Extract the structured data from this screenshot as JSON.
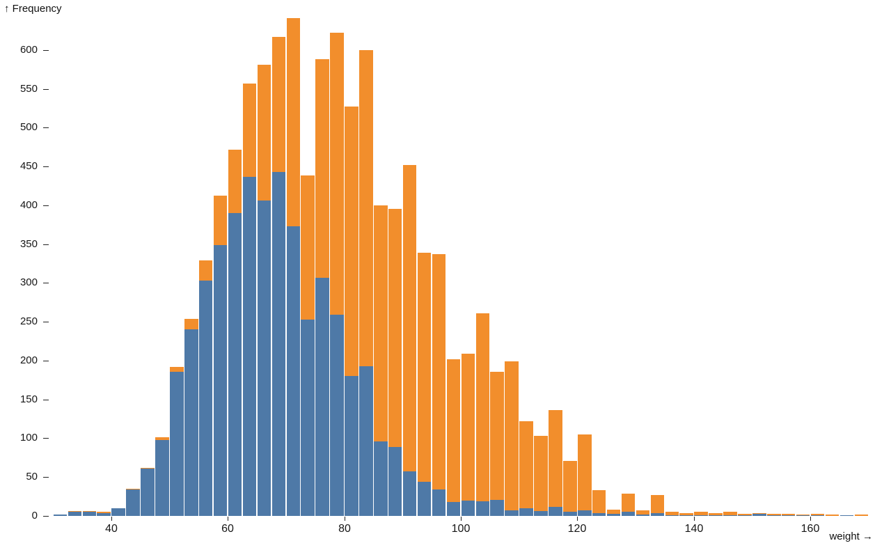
{
  "chart": {
    "y_axis_label": "↑ Frequency",
    "x_axis_label": "weight →"
  },
  "chart_data": {
    "type": "bar",
    "subtype": "stacked-histogram",
    "title": "",
    "xlabel": "weight",
    "ylabel": "Frequency",
    "bin_width": 2.5,
    "xlim": [
      30,
      170
    ],
    "ylim": [
      0,
      650
    ],
    "grid": false,
    "legend": "none",
    "xticks": [
      40,
      60,
      80,
      100,
      120,
      140,
      160
    ],
    "yticks": [
      0,
      50,
      100,
      150,
      200,
      250,
      300,
      350,
      400,
      450,
      500,
      550,
      600
    ],
    "x": [
      30,
      32.5,
      35,
      37.5,
      40,
      42.5,
      45,
      47.5,
      50,
      52.5,
      55,
      57.5,
      60,
      62.5,
      65,
      67.5,
      70,
      72.5,
      75,
      77.5,
      80,
      82.5,
      85,
      87.5,
      90,
      92.5,
      95,
      97.5,
      100,
      102.5,
      105,
      107.5,
      110,
      112.5,
      115,
      117.5,
      120,
      122.5,
      125,
      127.5,
      130,
      132.5,
      135,
      137.5,
      140,
      142.5,
      145,
      147.5,
      150,
      152.5,
      155,
      157.5,
      160,
      162.5,
      165,
      167.5
    ],
    "series": [
      {
        "name": "bottom-series-blue",
        "color": "#4e79a7",
        "values": [
          2,
          5,
          5,
          4,
          10,
          34,
          61,
          98,
          186,
          240,
          303,
          349,
          390,
          437,
          406,
          443,
          373,
          253,
          307,
          259,
          180,
          193,
          96,
          89,
          57,
          44,
          34,
          18,
          20,
          19,
          21,
          7,
          10,
          6,
          12,
          5,
          7,
          4,
          3,
          5,
          2,
          4,
          1,
          1,
          1,
          1,
          1,
          1,
          3,
          1,
          1,
          1,
          1,
          0,
          1,
          0
        ]
      },
      {
        "name": "top-series-orange",
        "color": "#f28e2c",
        "values": [
          0,
          1,
          1,
          1,
          0,
          1,
          1,
          3,
          6,
          14,
          26,
          63,
          82,
          120,
          175,
          174,
          268,
          185,
          281,
          363,
          347,
          407,
          304,
          306,
          395,
          295,
          303,
          184,
          189,
          242,
          165,
          192,
          112,
          97,
          124,
          66,
          98,
          29,
          5,
          24,
          5,
          23,
          4,
          3,
          4,
          3,
          4,
          2,
          1,
          2,
          2,
          1,
          2,
          2,
          0,
          2
        ]
      }
    ]
  }
}
